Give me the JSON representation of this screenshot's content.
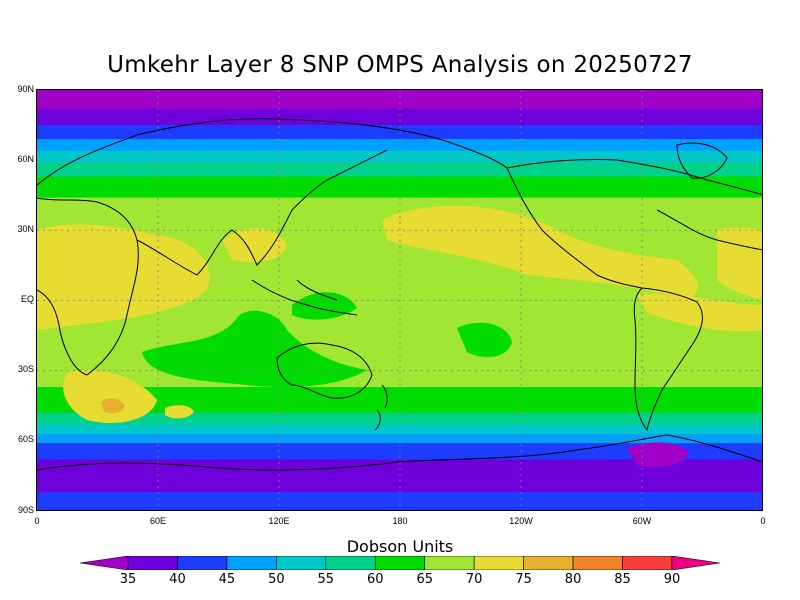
{
  "title": "Umkehr Layer 8 SNP OMPS Analysis on 20250727",
  "units_label": "Dobson Units",
  "lat_labels": [
    "90N",
    "60N",
    "30N",
    "EQ",
    "30S",
    "60S",
    "90S"
  ],
  "lon_labels": [
    "0",
    "60E",
    "120E",
    "180",
    "120W",
    "60W",
    "0"
  ],
  "colorbar": {
    "ticks": [
      "35",
      "40",
      "45",
      "50",
      "55",
      "60",
      "65",
      "70",
      "75",
      "80",
      "85",
      "90"
    ],
    "colors": [
      "#a000c8",
      "#6e00dc",
      "#1e3cff",
      "#00a0ff",
      "#00c8c8",
      "#00d28c",
      "#00dc00",
      "#a0e632",
      "#e6dc32",
      "#e6af2d",
      "#f08228",
      "#fa3c3c",
      "#f00082"
    ]
  },
  "map_bands": [
    {
      "lat_top": 90,
      "lat_bottom": 82,
      "color": "#a000c8"
    },
    {
      "lat_top": 82,
      "lat_bottom": 75,
      "color": "#6e00dc"
    },
    {
      "lat_top": 75,
      "lat_bottom": 69,
      "color": "#1e3cff"
    },
    {
      "lat_top": 69,
      "lat_bottom": 64,
      "color": "#00a0ff"
    },
    {
      "lat_top": 64,
      "lat_bottom": 59,
      "color": "#00c8c8"
    },
    {
      "lat_top": 59,
      "lat_bottom": 53,
      "color": "#00d28c"
    },
    {
      "lat_top": 53,
      "lat_bottom": 44,
      "color": "#00dc00"
    },
    {
      "lat_top": 44,
      "lat_bottom": -37,
      "color": "#a0e632"
    },
    {
      "lat_top": -37,
      "lat_bottom": -48,
      "color": "#00dc00"
    },
    {
      "lat_top": -48,
      "lat_bottom": -53,
      "color": "#00d28c"
    },
    {
      "lat_top": -53,
      "lat_bottom": -57,
      "color": "#00c8c8"
    },
    {
      "lat_top": -57,
      "lat_bottom": -61,
      "color": "#00a0ff"
    },
    {
      "lat_top": -61,
      "lat_bottom": -68,
      "color": "#1e3cff"
    },
    {
      "lat_top": -68,
      "lat_bottom": -82,
      "color": "#6e00dc"
    },
    {
      "lat_top": -82,
      "lat_bottom": -90,
      "color": "#1e3cff"
    }
  ]
}
